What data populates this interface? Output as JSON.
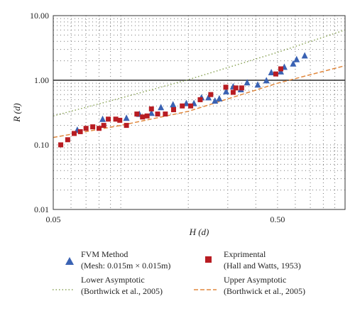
{
  "chart_data": {
    "type": "scatter",
    "xlabel": "H (d)",
    "ylabel": "R (d)",
    "xscale": "log",
    "yscale": "log",
    "xlim": [
      0.05,
      1.0
    ],
    "ylim": [
      0.01,
      10.0
    ],
    "x_ticks": [
      "0.05",
      "0.50"
    ],
    "y_ticks": [
      "10.00",
      "1.00",
      "0.10",
      "0.01"
    ],
    "grid": "dotted",
    "legend_position": "bottom",
    "series": [
      {
        "name": "FVM Method",
        "name_line2": "(Mesh: 0.015m × 0.015m)",
        "kind": "points",
        "marker": "triangle",
        "color": "#3a62b3",
        "x": [
          0.064,
          0.083,
          0.106,
          0.121,
          0.137,
          0.151,
          0.171,
          0.196,
          0.212,
          0.229,
          0.246,
          0.263,
          0.275,
          0.295,
          0.317,
          0.343,
          0.366,
          0.408,
          0.446,
          0.469,
          0.517,
          0.536,
          0.587,
          0.608,
          0.661
        ],
        "y": [
          0.17,
          0.25,
          0.26,
          0.3,
          0.31,
          0.38,
          0.42,
          0.44,
          0.44,
          0.54,
          0.54,
          0.48,
          0.52,
          0.67,
          0.8,
          0.72,
          0.92,
          0.85,
          0.99,
          1.32,
          1.36,
          1.6,
          1.8,
          2.1,
          2.4
        ]
      },
      {
        "name": "Exprimental",
        "name_line2": "(Hall and Watts, 1953)",
        "kind": "points",
        "marker": "square",
        "color": "#b81c22",
        "x": [
          0.054,
          0.058,
          0.062,
          0.066,
          0.07,
          0.075,
          0.08,
          0.084,
          0.088,
          0.095,
          0.099,
          0.106,
          0.118,
          0.125,
          0.131,
          0.137,
          0.146,
          0.158,
          0.172,
          0.188,
          0.205,
          0.226,
          0.252,
          0.294,
          0.317,
          0.326,
          0.346,
          0.491,
          0.517
        ],
        "y": [
          0.1,
          0.12,
          0.15,
          0.16,
          0.18,
          0.19,
          0.18,
          0.2,
          0.25,
          0.25,
          0.24,
          0.2,
          0.3,
          0.27,
          0.28,
          0.36,
          0.3,
          0.3,
          0.35,
          0.4,
          0.4,
          0.5,
          0.6,
          0.78,
          0.65,
          0.76,
          0.76,
          1.25,
          1.5
        ]
      },
      {
        "name": "Lower Asymptotic",
        "name_line2": "(Borthwick et al., 2005)",
        "kind": "line",
        "dash": "dotted",
        "color": "#8aa357",
        "x": [
          0.05,
          0.1,
          0.2,
          0.5,
          1.0
        ],
        "y": [
          0.28,
          0.53,
          1.02,
          2.7,
          6.0
        ]
      },
      {
        "name": "Upper Asymptotic",
        "name_line2": "(Borthwick et al., 2005)",
        "kind": "line",
        "dash": "dashed",
        "color": "#e0883e",
        "x": [
          0.05,
          0.1,
          0.2,
          0.5,
          1.0
        ],
        "y": [
          0.13,
          0.2,
          0.33,
          0.9,
          1.68
        ]
      }
    ]
  }
}
